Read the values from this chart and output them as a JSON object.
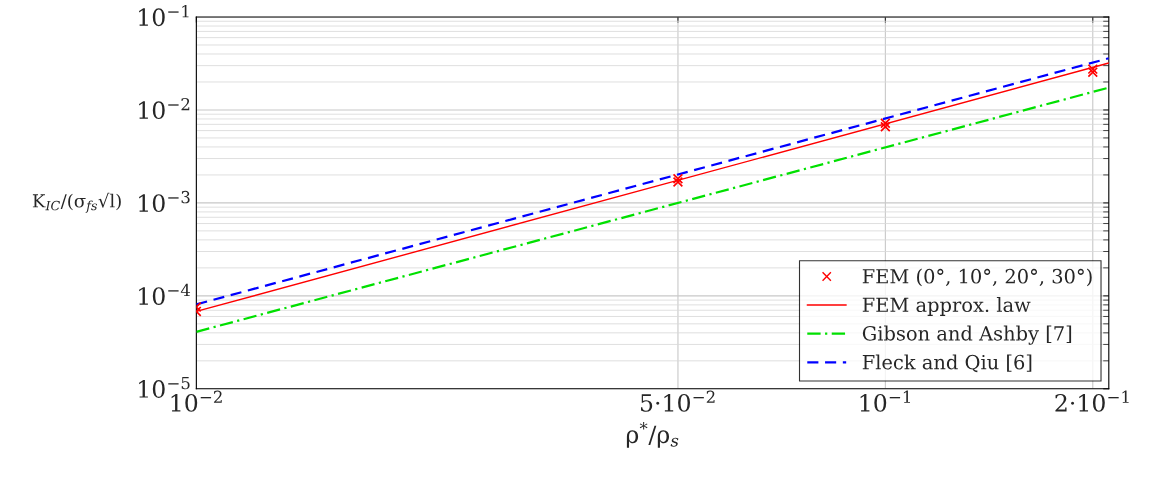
{
  "chart_data": {
    "type": "line",
    "xlabel": "ρ$^{*}$/ρ$_{s}$",
    "ylabel": "K$_{IC}$/(σ$_{fs}$√l)",
    "log": "xy",
    "grid": true,
    "legend": "bottom right",
    "xlim": [
      0.01,
      0.211
    ],
    "ylim": [
      1e-05,
      0.1
    ],
    "xticks": [
      {
        "value": 0.01,
        "label": "10$^{−2}$"
      },
      {
        "value": 0.05,
        "label": "5·10$^{−2}$"
      },
      {
        "value": 0.1,
        "label": "10$^{−1}$"
      },
      {
        "value": 0.2,
        "label": "2·10$^{−1}$"
      }
    ],
    "yticks": [
      {
        "value": 1e-05,
        "label": "10$^{−5}$"
      },
      {
        "value": 0.0001,
        "label": "10$^{−4}$"
      },
      {
        "value": 0.001,
        "label": "10$^{−3}$"
      },
      {
        "value": 0.01,
        "label": "10$^{−2}$"
      },
      {
        "value": 0.1,
        "label": "10$^{−1}$"
      }
    ],
    "series": [
      {
        "name": "FEM (0°, 10°, 20°, 30°)",
        "type": "scatter",
        "marker": "cross",
        "color": "#ff0000",
        "x": [
          0.01,
          0.01,
          0.05,
          0.05,
          0.1,
          0.1,
          0.2,
          0.2
        ],
        "values": [
          6.8e-05,
          7.6e-05,
          0.00168,
          0.00182,
          0.0066,
          0.0072,
          0.0255,
          0.0275
        ]
      },
      {
        "name": "FEM approx. law",
        "line_style": "solid",
        "color": "#ff0000",
        "x": [
          0.01,
          0.211
        ],
        "values": [
          6.8e-05,
          0.032
        ]
      },
      {
        "name": "Gibson and Ashby [7]",
        "line_style": "dashdot",
        "color": "#00e000",
        "x": [
          0.01,
          0.211
        ],
        "values": [
          4.1e-05,
          0.0174
        ]
      },
      {
        "name": "Fleck and Qiu [6]",
        "line_style": "dashed",
        "color": "#0000ff",
        "x": [
          0.01,
          0.211
        ],
        "values": [
          8.1e-05,
          0.036
        ]
      }
    ]
  }
}
